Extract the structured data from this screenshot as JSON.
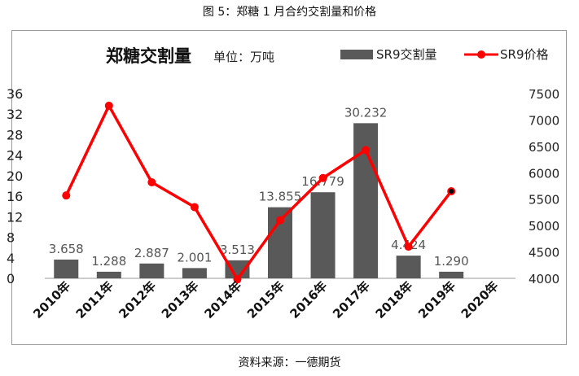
{
  "figure_title": "图 5：郑糖 1 月合约交割量和价格",
  "source": "资料来源：一德期货",
  "chart_data": {
    "type": "bar",
    "title": "郑糖交割量",
    "unit_note": "单位：万吨",
    "categories": [
      "2010年",
      "2011年",
      "2012年",
      "2013年",
      "2014年",
      "2015年",
      "2016年",
      "2017年",
      "2018年",
      "2019年",
      "2020年"
    ],
    "series": [
      {
        "name": "SR9交割量",
        "type": "bar",
        "axis": "left",
        "color": "#595959",
        "values": [
          3.658,
          1.288,
          2.887,
          2.001,
          3.513,
          13.855,
          16.779,
          30.232,
          4.424,
          1.29,
          null
        ],
        "labels": [
          "3.658",
          "1.288",
          "2.887",
          "2.001",
          "3.513",
          "13.855",
          "16.779",
          "30.232",
          "4.424",
          "1.290",
          ""
        ]
      },
      {
        "name": "SR9价格",
        "type": "line",
        "axis": "right",
        "color": "#ff0000",
        "values": [
          5570,
          7270,
          5820,
          5350,
          3980,
          5100,
          5900,
          6430,
          4600,
          5650,
          null
        ]
      }
    ],
    "y_left": {
      "min": 0,
      "max": 36,
      "ticks": [
        "0",
        "4",
        "8",
        "12",
        "16",
        "20",
        "24",
        "28",
        "32",
        "36"
      ]
    },
    "y_right": {
      "min": 4000,
      "max": 7500,
      "ticks": [
        "4000",
        "4500",
        "5000",
        "5500",
        "6000",
        "6500",
        "7000",
        "7500"
      ]
    },
    "legend": {
      "position": "top-right"
    },
    "grid": false
  }
}
